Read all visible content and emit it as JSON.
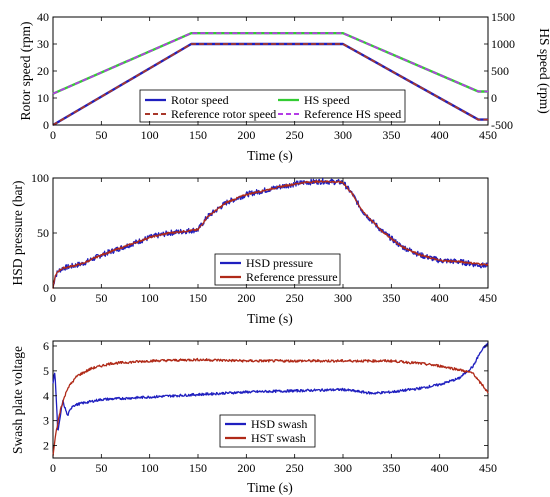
{
  "chart_data": [
    {
      "type": "line",
      "xlabel": "Time (s)",
      "ylabel": "Rotor speed (rpm)",
      "ylabel_right": "HS speed (rpm)",
      "xlim": [
        0,
        450
      ],
      "ylim": [
        0,
        40
      ],
      "ylim_right": [
        -500,
        1500
      ],
      "xticks": [
        0,
        50,
        100,
        150,
        200,
        250,
        300,
        350,
        400,
        450
      ],
      "yticks": [
        0,
        10,
        20,
        30,
        40
      ],
      "yticks_right": [
        -500,
        0,
        500,
        1000,
        1500
      ],
      "legend_placement": "bottom-center",
      "series": [
        {
          "name": "Rotor speed",
          "axis": "left",
          "color": "#1f1fbf",
          "style": "solid",
          "x": [
            0,
            143,
            300,
            440,
            450
          ],
          "y": [
            0,
            30,
            30,
            2,
            2
          ]
        },
        {
          "name": "Reference rotor speed",
          "axis": "left",
          "color": "#a8372a",
          "style": "dashed",
          "x": [
            0,
            143,
            300,
            440,
            450
          ],
          "y": [
            0,
            30,
            30,
            2,
            2
          ]
        },
        {
          "name": "HS speed",
          "axis": "right",
          "color": "#33cc33",
          "style": "solid",
          "x": [
            0,
            143,
            300,
            440,
            450
          ],
          "y": [
            80,
            1200,
            1200,
            120,
            120
          ]
        },
        {
          "name": "Reference HS speed",
          "axis": "right",
          "color": "#b43ce6",
          "style": "dashed",
          "x": [
            0,
            143,
            300,
            440,
            450
          ],
          "y": [
            80,
            1200,
            1200,
            120,
            120
          ]
        }
      ]
    },
    {
      "type": "line",
      "xlabel": "Time (s)",
      "ylabel": "HSD pressure (bar)",
      "xlim": [
        0,
        450
      ],
      "ylim": [
        0,
        100
      ],
      "xticks": [
        0,
        50,
        100,
        150,
        200,
        250,
        300,
        350,
        400,
        450
      ],
      "yticks": [
        0,
        50,
        100
      ],
      "legend_placement": "bottom-center",
      "series": [
        {
          "name": "HSD pressure",
          "color": "#1f1fbf",
          "noise": 2.5,
          "x": [
            0,
            2,
            5,
            10,
            30,
            50,
            75,
            100,
            120,
            140,
            150,
            160,
            180,
            200,
            220,
            240,
            260,
            280,
            300,
            310,
            320,
            340,
            360,
            380,
            400,
            420,
            440,
            450
          ],
          "y": [
            0,
            10,
            15,
            18,
            22,
            30,
            38,
            46,
            50,
            52,
            53,
            65,
            78,
            85,
            89,
            93,
            96,
            97,
            96,
            85,
            70,
            52,
            38,
            30,
            25,
            24,
            21,
            20
          ]
        },
        {
          "name": "Reference pressure",
          "color": "#b02a18",
          "noise": 0.8,
          "x": [
            0,
            2,
            5,
            10,
            30,
            50,
            75,
            100,
            120,
            140,
            150,
            160,
            180,
            200,
            220,
            240,
            260,
            280,
            300,
            310,
            320,
            340,
            360,
            380,
            400,
            420,
            440,
            450
          ],
          "y": [
            0,
            10,
            15,
            18,
            22,
            30,
            38,
            46,
            50,
            52,
            53,
            65,
            78,
            85,
            89,
            93,
            96,
            97,
            96,
            85,
            70,
            52,
            38,
            30,
            25,
            24,
            22,
            21
          ]
        }
      ]
    },
    {
      "type": "line",
      "xlabel": "Time (s)",
      "ylabel": "Swash plate voltage",
      "xlim": [
        0,
        450
      ],
      "ylim": [
        1.5,
        6.2
      ],
      "xticks": [
        0,
        50,
        100,
        150,
        200,
        250,
        300,
        350,
        400,
        450
      ],
      "yticks": [
        2,
        3,
        4,
        5,
        6
      ],
      "legend_placement": "bottom-center",
      "series": [
        {
          "name": "HSD swash",
          "color": "#1f1fbf",
          "noise": 0.05,
          "x": [
            0,
            2,
            5,
            10,
            15,
            20,
            30,
            50,
            100,
            150,
            200,
            250,
            300,
            330,
            350,
            380,
            400,
            420,
            435,
            440,
            445,
            450
          ],
          "y": [
            4.5,
            5.0,
            2.5,
            3.8,
            3.2,
            3.6,
            3.7,
            3.85,
            3.95,
            4.05,
            4.15,
            4.2,
            4.25,
            4.1,
            4.15,
            4.3,
            4.45,
            4.7,
            5.2,
            5.6,
            5.9,
            6.1
          ]
        },
        {
          "name": "HST swash",
          "color": "#b02a18",
          "noise": 0.05,
          "x": [
            0,
            3,
            8,
            15,
            25,
            40,
            60,
            100,
            150,
            200,
            250,
            300,
            350,
            380,
            400,
            420,
            435,
            440,
            445,
            450
          ],
          "y": [
            1.6,
            2.5,
            3.5,
            4.3,
            4.8,
            5.1,
            5.3,
            5.4,
            5.45,
            5.4,
            5.4,
            5.4,
            5.4,
            5.3,
            5.2,
            5.05,
            4.9,
            4.6,
            4.4,
            4.1
          ]
        }
      ]
    }
  ]
}
